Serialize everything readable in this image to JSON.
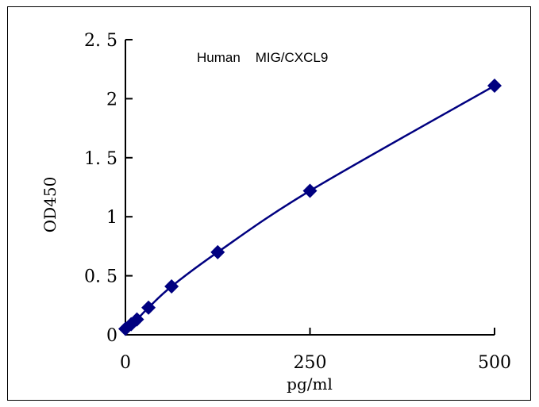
{
  "chart_data": {
    "type": "line",
    "title": "Human    MIG/CXCL9",
    "xlabel": "pg/ml",
    "ylabel": "OD450",
    "xlim": [
      0,
      500
    ],
    "ylim": [
      0,
      2.5
    ],
    "x_ticks": [
      {
        "value": 0,
        "label": "0"
      },
      {
        "value": 250,
        "label": "250"
      },
      {
        "value": 500,
        "label": "500"
      }
    ],
    "y_ticks": [
      {
        "value": 0,
        "label": "0"
      },
      {
        "value": 0.5,
        "label": "0. 5"
      },
      {
        "value": 1,
        "label": "1"
      },
      {
        "value": 1.5,
        "label": "1. 5"
      },
      {
        "value": 2,
        "label": "2"
      },
      {
        "value": 2.5,
        "label": "2. 5"
      }
    ],
    "grid": false,
    "series": [
      {
        "color": "#000080",
        "marker": "diamond",
        "smooth": true,
        "points": [
          {
            "x": 0,
            "y": 0.05
          },
          {
            "x": 7.8,
            "y": 0.09
          },
          {
            "x": 15.6,
            "y": 0.13
          },
          {
            "x": 31.25,
            "y": 0.23
          },
          {
            "x": 62.5,
            "y": 0.41
          },
          {
            "x": 125,
            "y": 0.7
          },
          {
            "x": 250,
            "y": 1.22
          },
          {
            "x": 500,
            "y": 2.11
          }
        ]
      }
    ]
  }
}
